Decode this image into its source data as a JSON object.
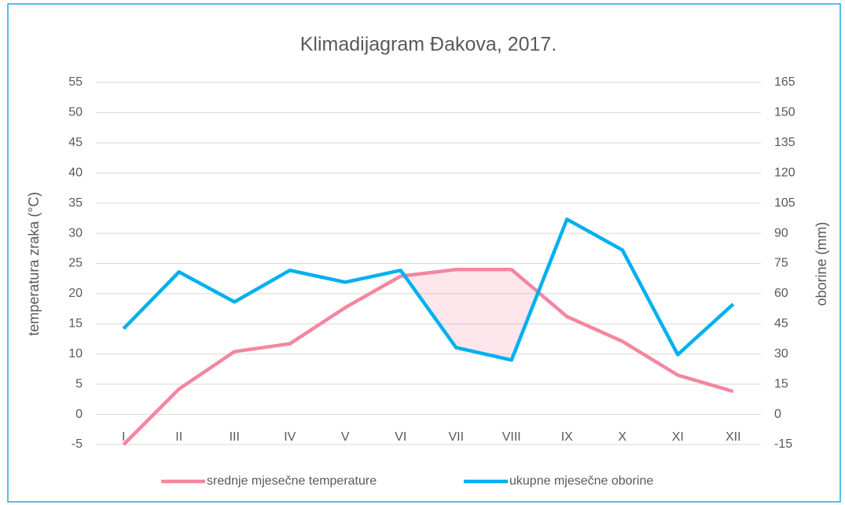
{
  "chart_data": {
    "type": "line",
    "title": "Klimadijagram Đakova, 2017.",
    "ylabel": "temperatura zraka (°C)",
    "y2label": "oborine (mm)",
    "categories": [
      "I",
      "II",
      "III",
      "IV",
      "V",
      "VI",
      "VII",
      "VIII",
      "IX",
      "X",
      "XI",
      "XII"
    ],
    "series": [
      {
        "name": "srednje mjesečne temperature",
        "color": "#f4869f",
        "values": [
          -5,
          4.2,
          10.4,
          11.7,
          17.7,
          22.9,
          24.0,
          24.0,
          16.2,
          12.1,
          6.5,
          3.8
        ]
      },
      {
        "name": "ukupne mjesečne oborine",
        "color": "#00b0f0",
        "axis": "y2",
        "values": [
          42.6,
          70.8,
          55.9,
          71.6,
          65.7,
          71.6,
          33.2,
          27.0,
          97.0,
          81.7,
          29.7,
          54.8
        ]
      }
    ],
    "ylim": [
      -5,
      55
    ],
    "yticks": [
      -5,
      0,
      5,
      10,
      15,
      20,
      25,
      30,
      35,
      40,
      45,
      50,
      55
    ],
    "y2lim": [
      -15,
      165
    ],
    "y2ticks": [
      -15,
      0,
      15,
      30,
      45,
      60,
      75,
      90,
      105,
      120,
      135,
      150,
      165
    ],
    "grid": true,
    "legend": "bottom"
  }
}
